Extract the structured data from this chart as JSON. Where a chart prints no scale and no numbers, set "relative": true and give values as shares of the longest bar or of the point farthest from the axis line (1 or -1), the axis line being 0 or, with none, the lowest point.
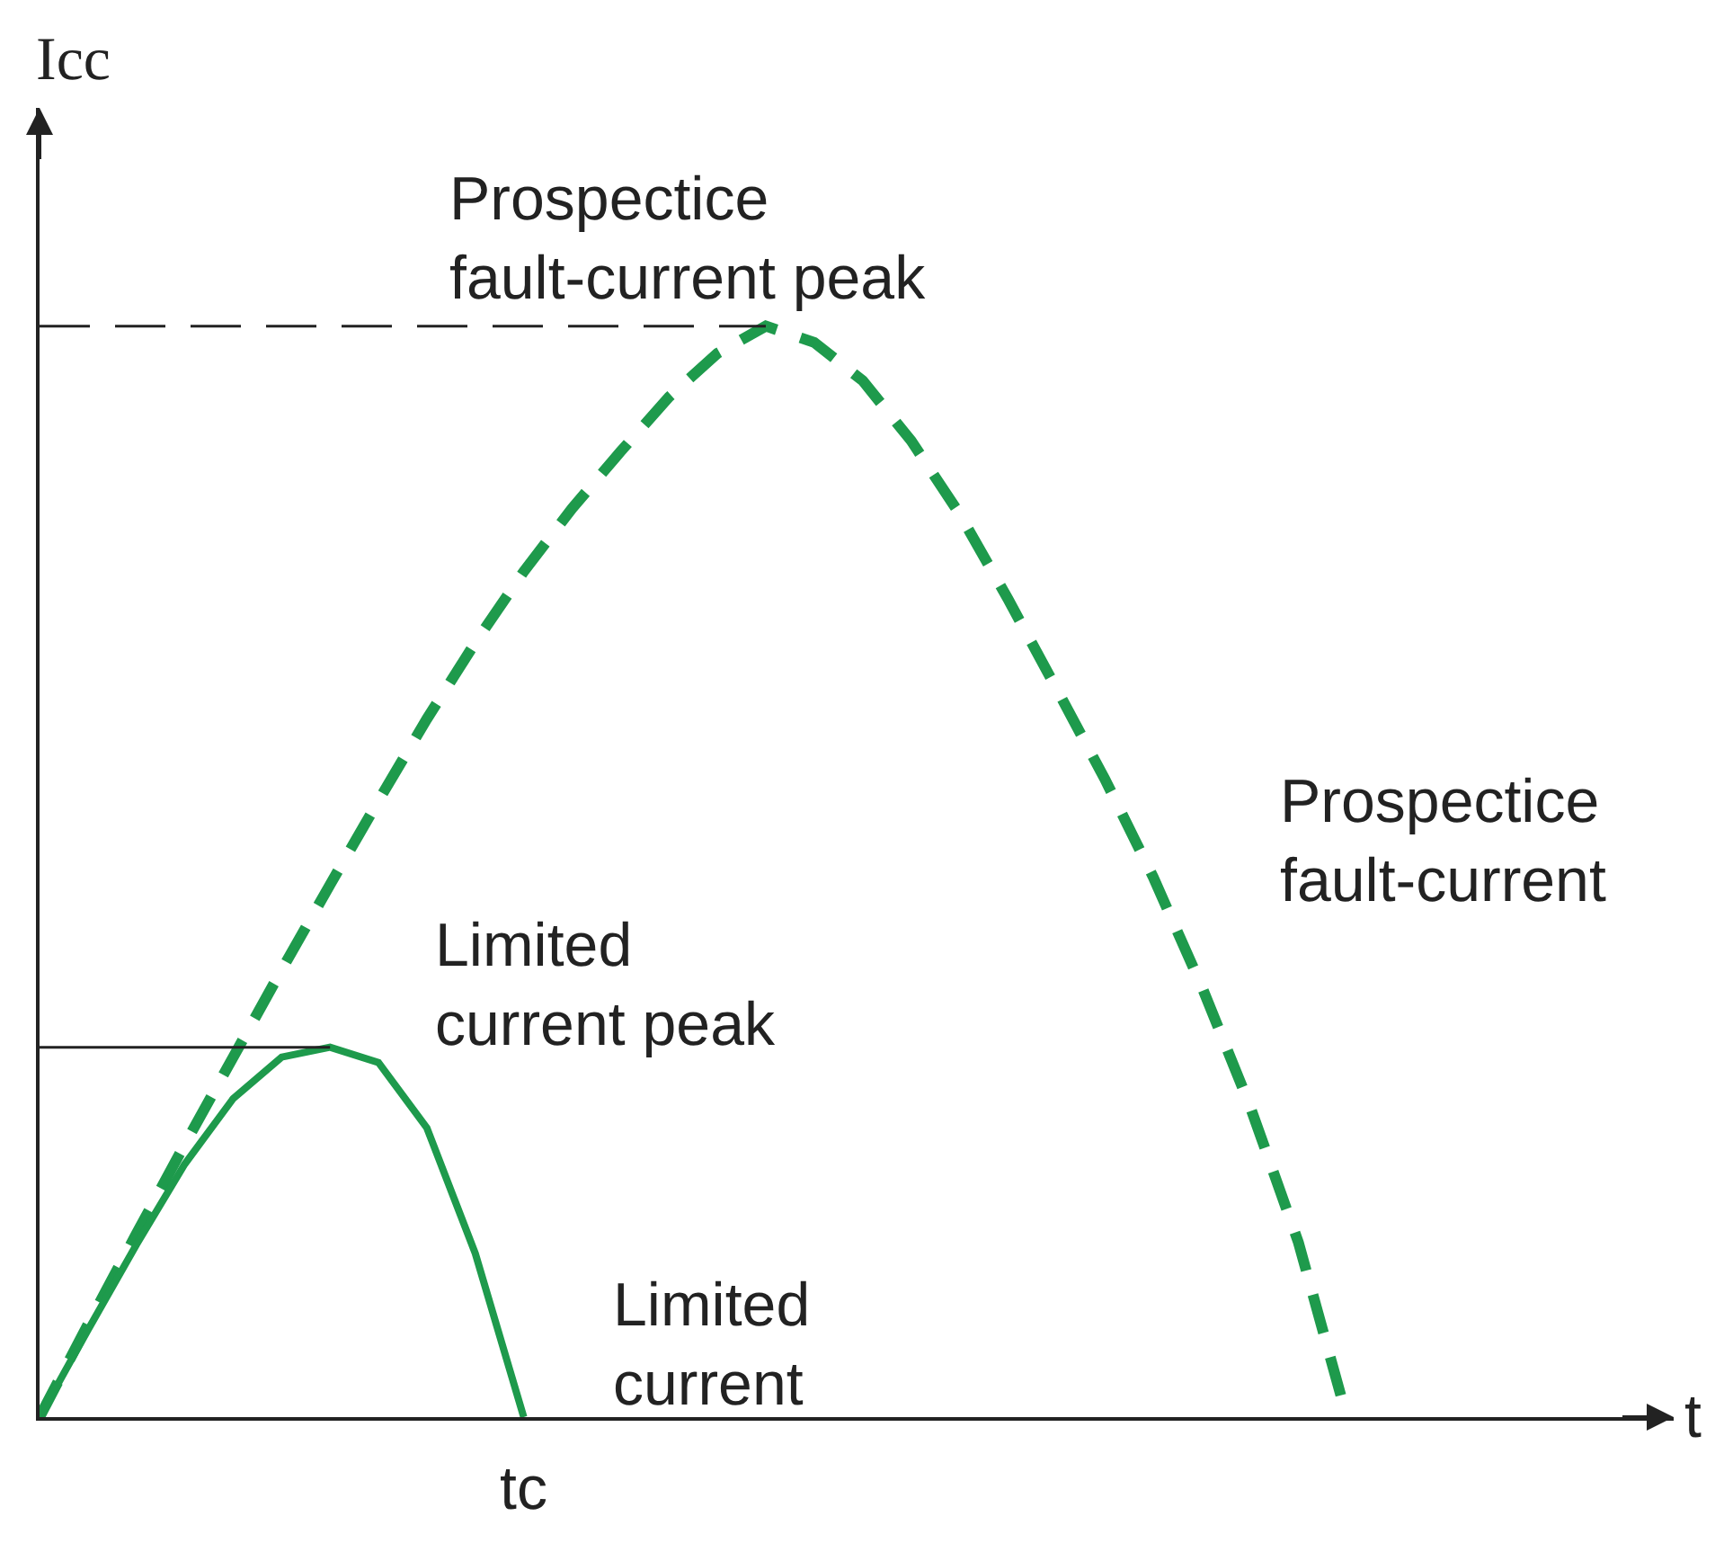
{
  "chart_data": {
    "type": "line",
    "relative": true,
    "ylabel": "Icc",
    "categories": [
      null,
      null,
      null,
      null,
      null,
      null,
      null,
      null,
      null,
      null,
      null,
      null,
      null,
      null,
      null,
      null,
      null,
      null,
      null,
      null,
      null,
      null,
      null,
      null,
      null,
      null,
      null,
      null
    ],
    "series": [
      {
        "color": "#1e9a4c",
        "line_style": "dashed",
        "values": [
          0,
          0.085,
          0.168,
          0.25,
          0.33,
          0.41,
          0.488,
          0.565,
          0.64,
          0.71,
          0.775,
          0.833,
          0.885,
          0.935,
          0.975,
          1.0,
          0.985,
          0.95,
          0.895,
          0.828,
          0.75,
          0.668,
          0.585,
          0.495,
          0.395,
          0.285,
          0.16,
          0
        ]
      },
      {
        "color": "#1e9a4c",
        "line_style": "solid",
        "values": [
          0,
          0.08,
          0.158,
          0.232,
          0.292,
          0.33,
          0.339,
          0.325,
          0.265,
          0.15,
          0,
          null,
          null,
          null,
          null,
          null,
          null,
          null,
          null,
          null,
          null,
          null,
          null,
          null,
          null,
          null,
          null,
          null
        ]
      }
    ],
    "ref_lines": [
      {
        "axis": "y",
        "value": 1.0,
        "color": "#222222",
        "line_style": "dashed"
      },
      {
        "axis": "y",
        "value": 0.339,
        "color": "#222222",
        "line_style": "solid"
      }
    ],
    "annotations": [
      "Prospectice\nfault-current peak",
      "Prospectice\nfault-current",
      "Limited\ncurrent peak",
      "Limited\ncurrent",
      "tc",
      "t"
    ]
  }
}
